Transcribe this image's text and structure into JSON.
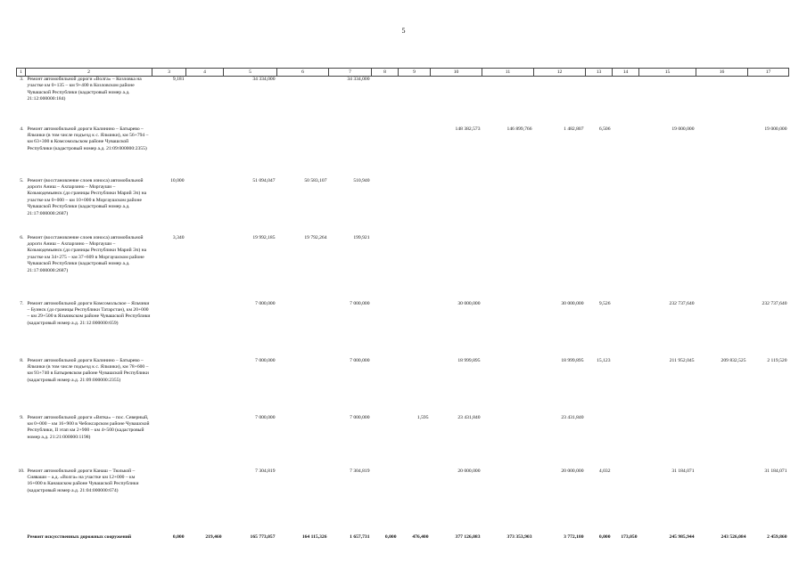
{
  "page_number": "5",
  "header": [
    "1",
    "2",
    "3",
    "4",
    "5",
    "6",
    "7",
    "8",
    "9",
    "10",
    "11",
    "12",
    "13",
    "14",
    "15",
    "16",
    "17"
  ],
  "rows": [
    {
      "n": "3.",
      "name": "Ремонт автомобильной дороги «Волга» – Козловка на участке км 0+135 – км 9+400 в Козловском районе Чувашской Республики (кадастровый номер а.д. 21:12:000000:184)",
      "c3": "9,181",
      "c4": "",
      "c5": "34 334,000",
      "c6": "",
      "c7": "34 334,000",
      "c8": "",
      "c9": "",
      "c10": "",
      "c11": "",
      "c12": "",
      "c13": "",
      "c14": "",
      "c15": "",
      "c16": "",
      "c17": ""
    },
    {
      "n": "4.",
      "name": "Ремонт автомобильной дороги Калинино – Батырево – Яльчики (в том числе подъезд к с. Яльчики), км 56+794 – км 63+300 в Комсомольском районе Чувашской Республики (кадастровый номер а.д. 21:09:000000:2355)",
      "c3": "",
      "c4": "",
      "c5": "",
      "c6": "",
      "c7": "",
      "c8": "",
      "c9": "",
      "c10": "148 382,573",
      "c11": "146 899,766",
      "c12": "1 482,807",
      "c13": "6,506",
      "c14": "",
      "c15": "19 000,000",
      "c16": "",
      "c17": "19 000,000"
    },
    {
      "n": "5.",
      "name": "Ремонт (восстановление слоев износа) автомобильной дороги Аниш – Ахпарзино – Моргауши – Козьмодемьянск (до границы Республики Марий Эл) на участке км 0+000 – км 10+000 в Моргаушском районе Чувашской Республики (кадастровый номер а.д. 21:17:000000:2687)",
      "c3": "10,000",
      "c4": "",
      "c5": "51 094,047",
      "c6": "50 583,107",
      "c7": "510,940",
      "c8": "",
      "c9": "",
      "c10": "",
      "c11": "",
      "c12": "",
      "c13": "",
      "c14": "",
      "c15": "",
      "c16": "",
      "c17": ""
    },
    {
      "n": "6.",
      "name": "Ремонт (восстановление слоев износа) автомобильной дороги Аниш – Ахпарзино – Моргауши – Козьмодемьянск (до границы Республики Марий Эл) на участке км 34+275 – км 37+609 в Моргаушском районе Чувашской Республики (кадастровый номер а.д. 21:17:000000:2687)",
      "c3": "3,340",
      "c4": "",
      "c5": "19 992,185",
      "c6": "19 792,264",
      "c7": "199,921",
      "c8": "",
      "c9": "",
      "c10": "",
      "c11": "",
      "c12": "",
      "c13": "",
      "c14": "",
      "c15": "",
      "c16": "",
      "c17": ""
    },
    {
      "n": "7.",
      "name": "Ремонт автомобильной дороги Комсомольское – Яльчики – Буинск (до границы Республики Татарстан), км 20+000 – км 29+500 в Яльчикском районе Чувашской Республики (кадастровый номер а.д. 21:12:000000:659)",
      "c3": "",
      "c4": "",
      "c5": "7 000,000",
      "c6": "",
      "c7": "7 000,000",
      "c8": "",
      "c9": "",
      "c10": "30 000,000",
      "c11": "",
      "c12": "30 000,000",
      "c13": "9,526",
      "c14": "",
      "c15": "232 737,640",
      "c16": "",
      "c17": "232 737,640"
    },
    {
      "n": "8.",
      "name": "Ремонт автомобильной дороги Калинино – Батырево – Яльчики (в том числе подъезд к с. Яльчики), км 78+600 – км 93+740 в Батыревском районе Чувашской Республики (кадастровый номер а.д. 21:09:000000:2355)",
      "c3": "",
      "c4": "",
      "c5": "7 000,000",
      "c6": "",
      "c7": "7 000,000",
      "c8": "",
      "c9": "",
      "c10": "18 999,895",
      "c11": "",
      "c12": "18 999,895",
      "c13": "15,123",
      "c14": "",
      "c15": "211 952,045",
      "c16": "209 832,525",
      "c17": "2 119,520"
    },
    {
      "n": "9.",
      "name": "Ремонт автомобильной дороги «Вятка» – пос. Северный, км 0+000 – км 16+900 в Чебоксарском районе Чувашской Республики, II этап км 2+900 – км 4+500 (кадастровый номер а.д. 21:21:000000:1198)",
      "c3": "",
      "c4": "",
      "c5": "7 000,000",
      "c6": "",
      "c7": "7 000,000",
      "c8": "",
      "c9": "1,595",
      "c10": "23 431,840",
      "c11": "",
      "c12": "23 431,840",
      "c13": "",
      "c14": "",
      "c15": "",
      "c16": "",
      "c17": ""
    },
    {
      "n": "10.",
      "name": "Ремонт автомобильной дороги Канаш – Тюлькой – Сияваши – а.д. «Волга» на участке км 12+000 – км 16+000 в Канашском районе Чувашской Республики (кадастровый номер а.д. 21:04:000000:674)",
      "c3": "",
      "c4": "",
      "c5": "7 304,819",
      "c6": "",
      "c7": "7 304,819",
      "c8": "",
      "c9": "",
      "c10": "20 000,000",
      "c11": "",
      "c12": "20 000,000",
      "c13": "4,032",
      "c14": "",
      "c15": "31 184,071",
      "c16": "",
      "c17": "31 184,071"
    }
  ],
  "total": {
    "name": "Ремонт искусственных дорожных сооружений",
    "c3": "0,000",
    "c4": "219,460",
    "c5": "165 773,057",
    "c6": "164 115,326",
    "c7": "1 657,731",
    "c8": "0,000",
    "c9": "476,400",
    "c10": "377 126,083",
    "c11": "373 353,903",
    "c12": "3 772,180",
    "c13": "0,000",
    "c14": "173,050",
    "c15": "245 985,944",
    "c16": "243 526,084",
    "c17": "2 459,860"
  }
}
